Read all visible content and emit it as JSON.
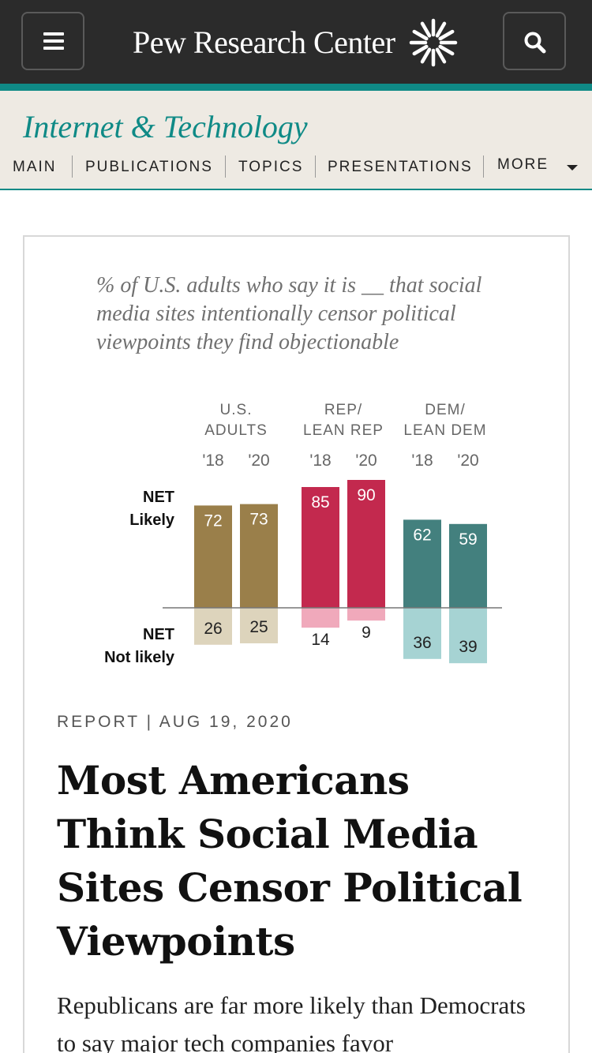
{
  "header": {
    "brand": "Pew Research Center",
    "colors": {
      "bar": "#2b2b2b",
      "accent": "#0f8a86"
    }
  },
  "section": {
    "title": "Internet & Technology",
    "nav": [
      "MAIN",
      "PUBLICATIONS",
      "TOPICS",
      "PRESENTATIONS",
      "MORE"
    ]
  },
  "chart_data": {
    "type": "bar",
    "title": "% of U.S. adults who say it is __ that social media sites intentionally censor political viewpoints they find objectionable",
    "groups": [
      "U.S. ADULTS",
      "REP/ LEAN REP",
      "DEM/ LEAN DEM"
    ],
    "years": [
      "'18",
      "'20"
    ],
    "series": [
      {
        "name": "NET Likely",
        "values": [
          72,
          73,
          85,
          90,
          62,
          59
        ]
      },
      {
        "name": "NET Not likely",
        "values": [
          26,
          25,
          14,
          9,
          36,
          39
        ]
      }
    ],
    "row_labels": [
      "NET Likely",
      "NET Not likely"
    ],
    "colors": {
      "us_likely": "#9a7f4a",
      "us_not": "#ddd4bc",
      "rep_likely": "#c3294e",
      "rep_not": "#f0a9bb",
      "dem_likely": "#43807e",
      "dem_not": "#a6d3d3"
    }
  },
  "article": {
    "meta": "REPORT | AUG 19, 2020",
    "headline": "Most Americans Think Social Media Sites Censor Political Viewpoints",
    "deck": "Republicans are far more likely than Democrats to say major tech companies favor"
  }
}
